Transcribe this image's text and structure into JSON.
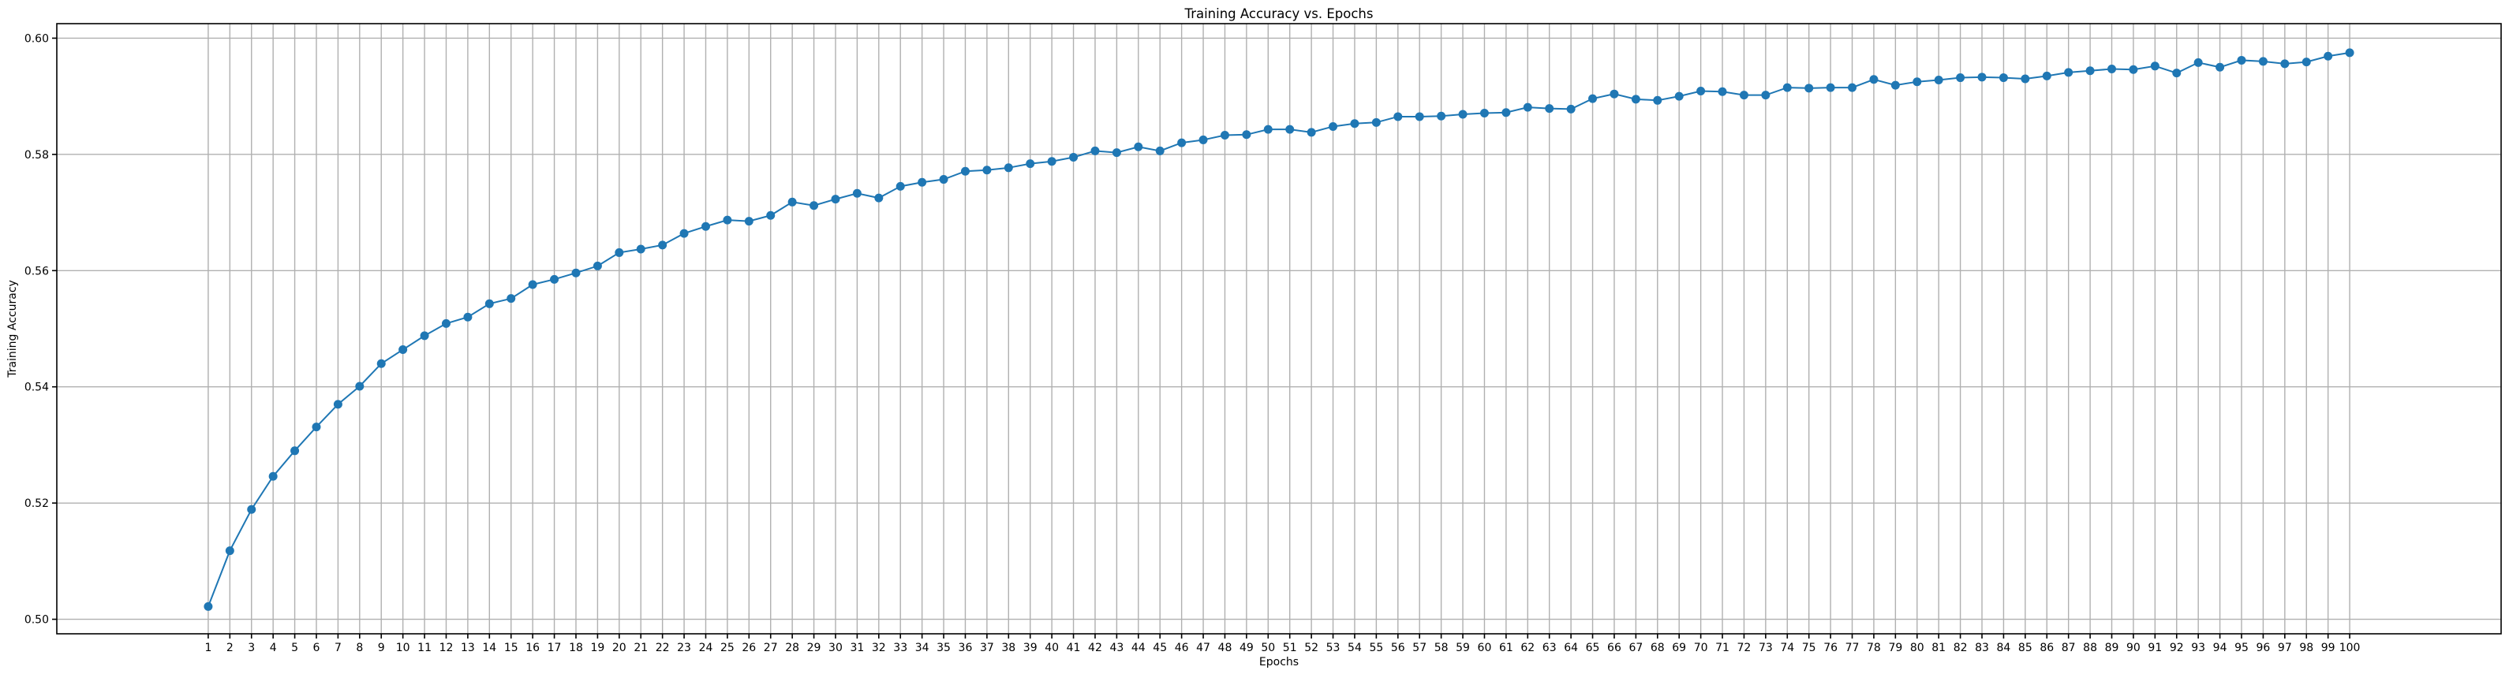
{
  "chart_data": {
    "type": "line",
    "title": "Training Accuracy vs. Epochs",
    "xlabel": "Epochs",
    "ylabel": "Training Accuracy",
    "xlim": [
      -6.0,
      107.0
    ],
    "ylim": [
      0.4975,
      0.6025
    ],
    "yticks": [
      0.5,
      0.52,
      0.54,
      0.56,
      0.58,
      0.6
    ],
    "ytick_labels": [
      "0.50",
      "0.52",
      "0.54",
      "0.56",
      "0.58",
      "0.60"
    ],
    "grid": true,
    "marker": "circle",
    "line_color": "#1f77b4",
    "x": [
      1,
      2,
      3,
      4,
      5,
      6,
      7,
      8,
      9,
      10,
      11,
      12,
      13,
      14,
      15,
      16,
      17,
      18,
      19,
      20,
      21,
      22,
      23,
      24,
      25,
      26,
      27,
      28,
      29,
      30,
      31,
      32,
      33,
      34,
      35,
      36,
      37,
      38,
      39,
      40,
      41,
      42,
      43,
      44,
      45,
      46,
      47,
      48,
      49,
      50,
      51,
      52,
      53,
      54,
      55,
      56,
      57,
      58,
      59,
      60,
      61,
      62,
      63,
      64,
      65,
      66,
      67,
      68,
      69,
      70,
      71,
      72,
      73,
      74,
      75,
      76,
      77,
      78,
      79,
      80,
      81,
      82,
      83,
      84,
      85,
      86,
      87,
      88,
      89,
      90,
      91,
      92,
      93,
      94,
      95,
      96,
      97,
      98,
      99,
      100
    ],
    "series": [
      {
        "values": [
          0.5022,
          0.5118,
          0.5189,
          0.5246,
          0.529,
          0.5331,
          0.537,
          0.5401,
          0.544,
          0.5464,
          0.5488,
          0.5509,
          0.552,
          0.5543,
          0.5552,
          0.5576,
          0.5585,
          0.5596,
          0.5608,
          0.5631,
          0.5637,
          0.5644,
          0.5664,
          0.5676,
          0.5687,
          0.5685,
          0.5695,
          0.5718,
          0.5712,
          0.5723,
          0.5733,
          0.5725,
          0.5745,
          0.5752,
          0.5757,
          0.5771,
          0.5773,
          0.5777,
          0.5784,
          0.5788,
          0.5795,
          0.5806,
          0.5803,
          0.5813,
          0.5806,
          0.582,
          0.5825,
          0.5833,
          0.5834,
          0.5843,
          0.5843,
          0.5838,
          0.5848,
          0.5853,
          0.5855,
          0.5865,
          0.5865,
          0.5866,
          0.5869,
          0.5871,
          0.5872,
          0.5881,
          0.5879,
          0.5878,
          0.5896,
          0.5904,
          0.5895,
          0.5893,
          0.59,
          0.5909,
          0.5908,
          0.5902,
          0.5902,
          0.5915,
          0.5914,
          0.5915,
          0.5915,
          0.5929,
          0.5919,
          0.5925,
          0.5928,
          0.5932,
          0.5933,
          0.5932,
          0.593,
          0.5935,
          0.5941,
          0.5944,
          0.5947,
          0.5946,
          0.5952,
          0.594,
          0.5958,
          0.595,
          0.5962,
          0.596,
          0.5956,
          0.5959,
          0.5969,
          0.5975
        ]
      }
    ]
  }
}
